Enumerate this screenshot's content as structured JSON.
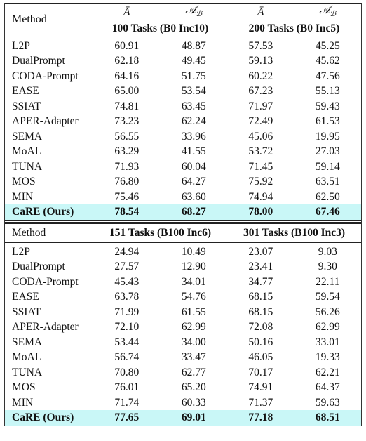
{
  "table": {
    "metrics": [
      {
        "symbol": "Ā"
      },
      {
        "symbol": "𝒜",
        "sub": "ℬ"
      }
    ],
    "blocks": [
      {
        "method": "Method",
        "settings": [
          "100 Tasks (B0 Inc10)",
          "200 Tasks (B0 Inc5)"
        ],
        "rows": [
          [
            "L2P",
            "60.91",
            "48.87",
            "57.53",
            "45.25"
          ],
          [
            "DualPrompt",
            "62.18",
            "49.45",
            "59.13",
            "45.62"
          ],
          [
            "CODA-Prompt",
            "64.16",
            "51.75",
            "60.22",
            "47.56"
          ],
          [
            "EASE",
            "65.00",
            "53.54",
            "67.23",
            "55.13"
          ],
          [
            "SSIAT",
            "74.81",
            "63.45",
            "71.97",
            "59.43"
          ],
          [
            "APER-Adapter",
            "73.23",
            "62.24",
            "72.49",
            "61.53"
          ],
          [
            "SEMA",
            "56.55",
            "33.96",
            "45.06",
            "19.95"
          ],
          [
            "MoAL",
            "63.29",
            "41.55",
            "53.72",
            "27.03"
          ],
          [
            "TUNA",
            "71.93",
            "60.04",
            "71.45",
            "59.14"
          ],
          [
            "MOS",
            "76.80",
            "64.27",
            "75.92",
            "63.51"
          ],
          [
            "MIN",
            "75.46",
            "63.60",
            "74.94",
            "62.50"
          ],
          [
            "CaRE (Ours)",
            "78.54",
            "68.27",
            "78.00",
            "67.46"
          ]
        ]
      },
      {
        "method": "Method",
        "settings": [
          "151 Tasks (B100 Inc6)",
          "301 Tasks (B100 Inc3)"
        ],
        "rows": [
          [
            "L2P",
            "24.94",
            "10.49",
            "23.07",
            "9.03"
          ],
          [
            "DualPrompt",
            "27.57",
            "12.90",
            "23.41",
            "9.30"
          ],
          [
            "CODA-Prompt",
            "45.43",
            "34.01",
            "34.77",
            "22.11"
          ],
          [
            "EASE",
            "63.78",
            "54.76",
            "68.15",
            "59.54"
          ],
          [
            "SSIAT",
            "71.99",
            "61.55",
            "68.15",
            "56.26"
          ],
          [
            "APER-Adapter",
            "72.10",
            "62.99",
            "72.08",
            "62.99"
          ],
          [
            "SEMA",
            "53.44",
            "34.00",
            "50.16",
            "33.01"
          ],
          [
            "MoAL",
            "56.74",
            "33.47",
            "46.05",
            "19.33"
          ],
          [
            "TUNA",
            "70.80",
            "62.77",
            "70.17",
            "62.21"
          ],
          [
            "MOS",
            "76.01",
            "65.20",
            "74.91",
            "64.37"
          ],
          [
            "MIN",
            "71.74",
            "60.33",
            "71.37",
            "59.63"
          ],
          [
            "CaRE (Ours)",
            "77.65",
            "69.01",
            "77.18",
            "68.51"
          ]
        ]
      }
    ]
  }
}
